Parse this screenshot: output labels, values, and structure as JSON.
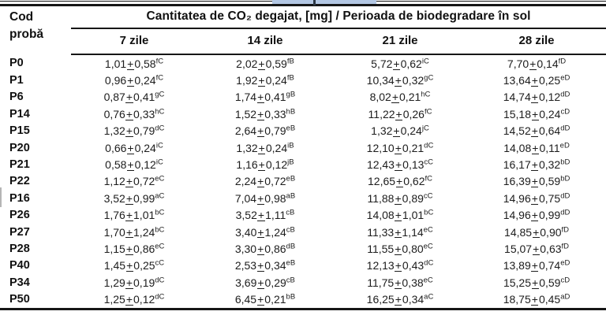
{
  "colors": {
    "background": "#ffffff",
    "text": "#111111",
    "border": "#161616",
    "top_strip": "#b3c7e3",
    "strip_tick": "#2c3744"
  },
  "decorations": {
    "top_strip": "partial-selection-highlight",
    "strip_tick": "cursor-tick"
  },
  "table": {
    "corner_header": {
      "line1": "Cod",
      "line2": "probă"
    },
    "main_header": "Cantitatea de CO₂ degajat, [mg] / Perioada de biodegradare în sol",
    "sub_headers": [
      "7 zile",
      "14 zile",
      "21 zile",
      "28 zile"
    ],
    "plus_minus_symbol": "±",
    "rows": [
      {
        "code": "P0",
        "cells": [
          {
            "mean": "1,01",
            "sd": "0,58",
            "sup": "fC"
          },
          {
            "mean": "2,02",
            "sd": "0,59",
            "sup": "fB"
          },
          {
            "mean": "5,72",
            "sd": "0,62",
            "sup": "iC"
          },
          {
            "mean": "7,70",
            "sd": "0,14",
            "sup": "fD"
          }
        ]
      },
      {
        "code": "P1",
        "cells": [
          {
            "mean": "0,96",
            "sd": "0,24",
            "sup": "fC"
          },
          {
            "mean": "1,92",
            "sd": "0,24",
            "sup": "fB"
          },
          {
            "mean": "10,34",
            "sd": "0,32",
            "sup": "gC"
          },
          {
            "mean": "13,64",
            "sd": "0,25",
            "sup": "eD"
          }
        ]
      },
      {
        "code": "P6",
        "cells": [
          {
            "mean": "0,87",
            "sd": "0,41",
            "sup": "gC"
          },
          {
            "mean": "1,74",
            "sd": "0,41",
            "sup": "gB"
          },
          {
            "mean": "8,02",
            "sd": "0,21",
            "sup": "hC"
          },
          {
            "mean": "14,74",
            "sd": "0,12",
            "sup": "dD"
          }
        ]
      },
      {
        "code": "P14",
        "cells": [
          {
            "mean": "0,76",
            "sd": "0,33",
            "sup": "hC"
          },
          {
            "mean": "1,52",
            "sd": "0,33",
            "sup": "hB"
          },
          {
            "mean": "11,22",
            "sd": "0,26",
            "sup": "fC"
          },
          {
            "mean": "15,18",
            "sd": "0,24",
            "sup": "cD"
          }
        ]
      },
      {
        "code": "P15",
        "cells": [
          {
            "mean": "1,32",
            "sd": "0,79",
            "sup": "dC"
          },
          {
            "mean": "2,64",
            "sd": "0,79",
            "sup": "eB"
          },
          {
            "mean": "1,32",
            "sd": "0,24",
            "sup": "jC"
          },
          {
            "mean": "14,52",
            "sd": "0,64",
            "sup": "dD"
          }
        ]
      },
      {
        "code": "P20",
        "cells": [
          {
            "mean": "0,66",
            "sd": "0,24",
            "sup": "iC"
          },
          {
            "mean": "1,32",
            "sd": "0,24",
            "sup": "iB"
          },
          {
            "mean": "12,10",
            "sd": "0,21",
            "sup": "dC"
          },
          {
            "mean": "14,08",
            "sd": "0,11",
            "sup": "eD"
          }
        ]
      },
      {
        "code": "P21",
        "cells": [
          {
            "mean": "0,58",
            "sd": "0,12",
            "sup": "iC"
          },
          {
            "mean": "1,16",
            "sd": "0,12",
            "sup": "jB"
          },
          {
            "mean": "12,43",
            "sd": "0,13",
            "sup": "cC"
          },
          {
            "mean": "16,17",
            "sd": "0,32",
            "sup": "bD"
          }
        ]
      },
      {
        "code": "P22",
        "cells": [
          {
            "mean": "1,12",
            "sd": "0,72",
            "sup": "eC"
          },
          {
            "mean": "2,24",
            "sd": "0,72",
            "sup": "eB"
          },
          {
            "mean": "12,65",
            "sd": "0,62",
            "sup": "fC"
          },
          {
            "mean": "16,39",
            "sd": "0,59",
            "sup": "bD"
          }
        ]
      },
      {
        "code": "P16",
        "cells": [
          {
            "mean": "3,52",
            "sd": "0,99",
            "sup": "aC"
          },
          {
            "mean": "7,04",
            "sd": "0,98",
            "sup": "aB"
          },
          {
            "mean": "11,88",
            "sd": "0,89",
            "sup": "cC"
          },
          {
            "mean": "14,96",
            "sd": "0,75",
            "sup": "dD"
          }
        ]
      },
      {
        "code": "P26",
        "cells": [
          {
            "mean": "1,76",
            "sd": "1,01",
            "sup": "bC"
          },
          {
            "mean": "3,52",
            "sd": "1,11",
            "sup": "cB"
          },
          {
            "mean": "14,08",
            "sd": "1,01",
            "sup": "bC"
          },
          {
            "mean": "14,96",
            "sd": "0,99",
            "sup": "dD"
          }
        ]
      },
      {
        "code": "P27",
        "cells": [
          {
            "mean": "1,70",
            "sd": "1,24",
            "sup": "bC"
          },
          {
            "mean": "3,40",
            "sd": "1,24",
            "sup": "cB"
          },
          {
            "mean": "11,33",
            "sd": "1,14",
            "sup": "eC"
          },
          {
            "mean": "14,85",
            "sd": "0,90",
            "sup": "fD"
          }
        ]
      },
      {
        "code": "P28",
        "cells": [
          {
            "mean": "1,15",
            "sd": "0,86",
            "sup": "eC"
          },
          {
            "mean": "3,30",
            "sd": "0,86",
            "sup": "dB"
          },
          {
            "mean": "11,55",
            "sd": "0,80",
            "sup": "eC"
          },
          {
            "mean": "15,07",
            "sd": "0,63",
            "sup": "fD"
          }
        ]
      },
      {
        "code": "P40",
        "cells": [
          {
            "mean": "1,45",
            "sd": "0,25",
            "sup": "cC"
          },
          {
            "mean": "2,53",
            "sd": "0,34",
            "sup": "eB"
          },
          {
            "mean": "12,13",
            "sd": "0,43",
            "sup": "dC"
          },
          {
            "mean": "13,89",
            "sd": "0,74",
            "sup": "eD"
          }
        ]
      },
      {
        "code": "P34",
        "cells": [
          {
            "mean": "1,29",
            "sd": "0,19",
            "sup": "dC"
          },
          {
            "mean": "3,69",
            "sd": "0,29",
            "sup": "cB"
          },
          {
            "mean": "11,75",
            "sd": "0,38",
            "sup": "eC"
          },
          {
            "mean": "15,25",
            "sd": "0,59",
            "sup": "cD"
          }
        ]
      },
      {
        "code": "P50",
        "cells": [
          {
            "mean": "1,25",
            "sd": "0,12",
            "sup": "dC"
          },
          {
            "mean": "6,45",
            "sd": "0,21",
            "sup": "bB"
          },
          {
            "mean": "16,25",
            "sd": "0,34",
            "sup": "aC"
          },
          {
            "mean": "18,75",
            "sd": "0,45",
            "sup": "aD"
          }
        ]
      }
    ]
  }
}
